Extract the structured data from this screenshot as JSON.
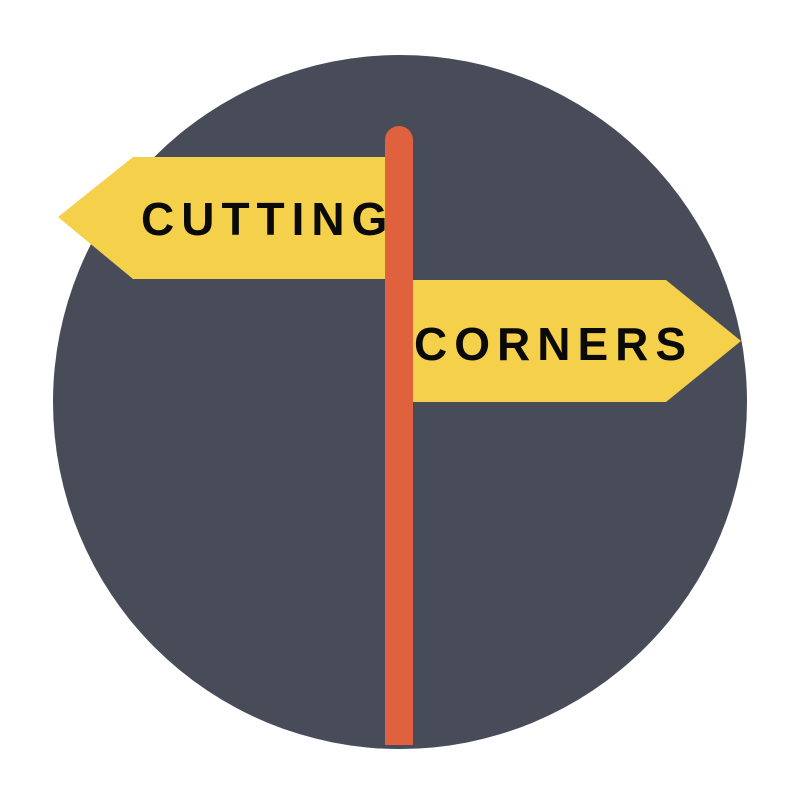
{
  "signpost": {
    "left_sign_text": "CUTTING",
    "right_sign_text": "CORNERS"
  },
  "colors": {
    "background": "#ffffff",
    "circle": "#484c58",
    "sign": "#f5d04a",
    "sign_text": "#0a0a0a",
    "pole": "#e0613e"
  },
  "icons": {
    "left_arrow": "arrow-left-sign",
    "right_arrow": "arrow-right-sign",
    "post": "signpost-pole"
  }
}
